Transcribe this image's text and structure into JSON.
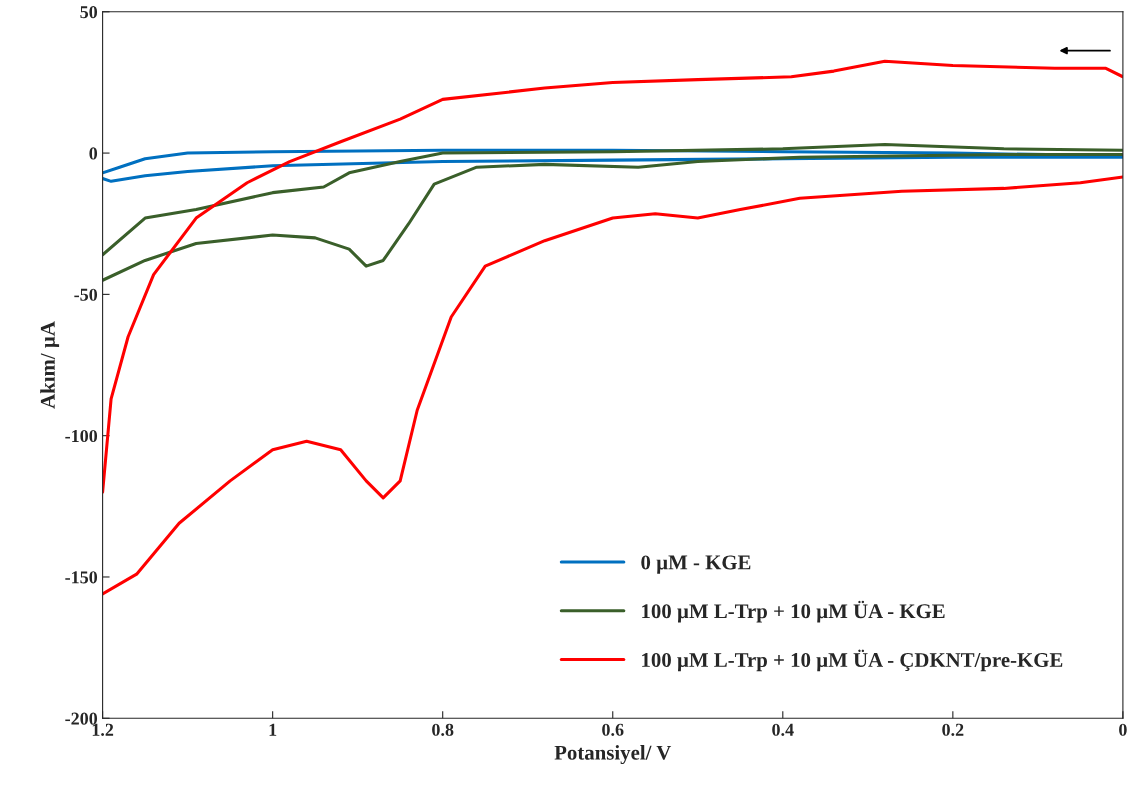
{
  "chart_data": {
    "type": "line",
    "xlabel": "Potansiyel/ V",
    "ylabel": "Akım/ µA",
    "xlim": [
      1.2,
      0
    ],
    "xticks": [
      1.2,
      1,
      0.8,
      0.6,
      0.4,
      0.2,
      0
    ],
    "ylim": [
      -200,
      50
    ],
    "yticks": [
      -200,
      -150,
      -100,
      -50,
      0,
      50
    ],
    "grid": false,
    "legend": "bottom right",
    "marker": "none",
    "line_style": "solid",
    "series": [
      {
        "name": "0 µM - KGE",
        "color": "#0070c0",
        "x": [
          0,
          0.2,
          0.4,
          0.6,
          0.8,
          1.0,
          1.1,
          1.15,
          1.18,
          1.2
        ],
        "values": [
          -1,
          0,
          0.5,
          1,
          1,
          0.5,
          0,
          -2,
          -5,
          -7
        ]
      },
      {
        "color": "#0070c0",
        "x": [
          1.2,
          1.19,
          1.15,
          1.1,
          1.0,
          0.8,
          0.6,
          0.4,
          0.2,
          0
        ],
        "values": [
          -9,
          -10,
          -8,
          -6.5,
          -4.5,
          -3,
          -2.5,
          -2,
          -1.5,
          -1.5
        ]
      },
      {
        "name": "100 µM L-Trp + 10 µM ÜA - KGE",
        "color": "#3a5f2a",
        "x": [
          0,
          0.14,
          0.28,
          0.4,
          0.6,
          0.8,
          0.85,
          0.91,
          0.94,
          1.0,
          1.09,
          1.15,
          1.2
        ],
        "values": [
          1,
          1.5,
          3,
          1.5,
          0.5,
          0,
          -3,
          -7,
          -12,
          -14,
          -20,
          -23,
          -36
        ]
      },
      {
        "color": "#3a5f2a",
        "x": [
          1.2,
          1.15,
          1.09,
          1.0,
          0.95,
          0.91,
          0.89,
          0.87,
          0.84,
          0.81,
          0.76,
          0.68,
          0.57,
          0.5,
          0.38,
          0.14,
          0
        ],
        "values": [
          -45,
          -38,
          -32,
          -29,
          -30,
          -34,
          -40,
          -38,
          -25,
          -11,
          -5,
          -4,
          -5,
          -3,
          -1.5,
          -0.5,
          -0.5
        ]
      },
      {
        "name": "100 µM L-Trp + 10 µM ÜA - ÇDKNT/pre-KGE",
        "color": "#ff0000",
        "x": [
          0,
          0.02,
          0.08,
          0.2,
          0.28,
          0.34,
          0.39,
          0.5,
          0.6,
          0.68,
          0.8,
          0.85,
          0.92,
          0.98,
          1.03,
          1.09,
          1.14,
          1.17,
          1.19,
          1.2
        ],
        "values": [
          27,
          30,
          30,
          31,
          32.5,
          29,
          27,
          26,
          25,
          23,
          19,
          12,
          4,
          -3,
          -10.5,
          -23,
          -43,
          -65,
          -87,
          -120
        ]
      },
      {
        "color": "#ff0000",
        "x": [
          1.2,
          1.16,
          1.11,
          1.05,
          1.0,
          0.96,
          0.92,
          0.89,
          0.87,
          0.85,
          0.83,
          0.79,
          0.75,
          0.68,
          0.6,
          0.55,
          0.5,
          0.45,
          0.38,
          0.26,
          0.14,
          0.05,
          0
        ],
        "values": [
          -156,
          -149,
          -131,
          -116,
          -105,
          -102,
          -105,
          -116,
          -122,
          -116,
          -91,
          -58,
          -40,
          -31,
          -23,
          -21.5,
          -23,
          -20,
          -16,
          -13.5,
          -12.5,
          -10.5,
          -8.5
        ]
      }
    ]
  }
}
